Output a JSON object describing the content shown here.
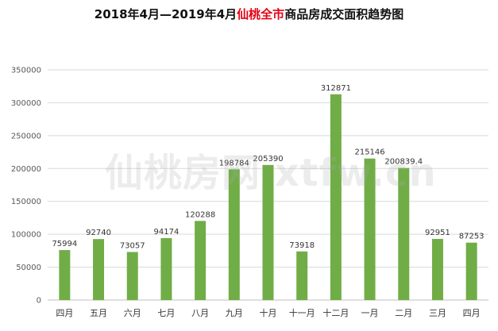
{
  "title": {
    "prefix": "2018年4月—2019年4月",
    "highlight": "仙桃全市",
    "suffix": "商品房成交面积趋势图"
  },
  "watermark": "仙桃房网 xtfw.cn",
  "colors": {
    "bar": "#70ad47",
    "title_highlight": "#e60012",
    "grid": "#d9d9d9"
  },
  "chart_data": {
    "type": "bar",
    "title": "2018年4月—2019年4月仙桃全市商品房成交面积趋势图",
    "xlabel": "",
    "ylabel": "",
    "ylim": [
      0,
      350000
    ],
    "yticks": [
      0,
      50000,
      100000,
      150000,
      200000,
      250000,
      300000,
      350000
    ],
    "grid": true,
    "legend": "none",
    "categories": [
      "四月",
      "五月",
      "六月",
      "七月",
      "八月",
      "九月",
      "十月",
      "十一月",
      "十二月",
      "一月",
      "二月",
      "三月",
      "四月"
    ],
    "values": [
      75994,
      92740,
      73057,
      94174,
      120288,
      198784,
      205390,
      73918,
      312871,
      215146,
      200839.4,
      92951,
      87253
    ],
    "value_labels": [
      "75994",
      "92740",
      "73057",
      "94174",
      "120288",
      "198784",
      "205390",
      "73918",
      "312871",
      "215146",
      "200839.4",
      "92951",
      "87253"
    ]
  }
}
